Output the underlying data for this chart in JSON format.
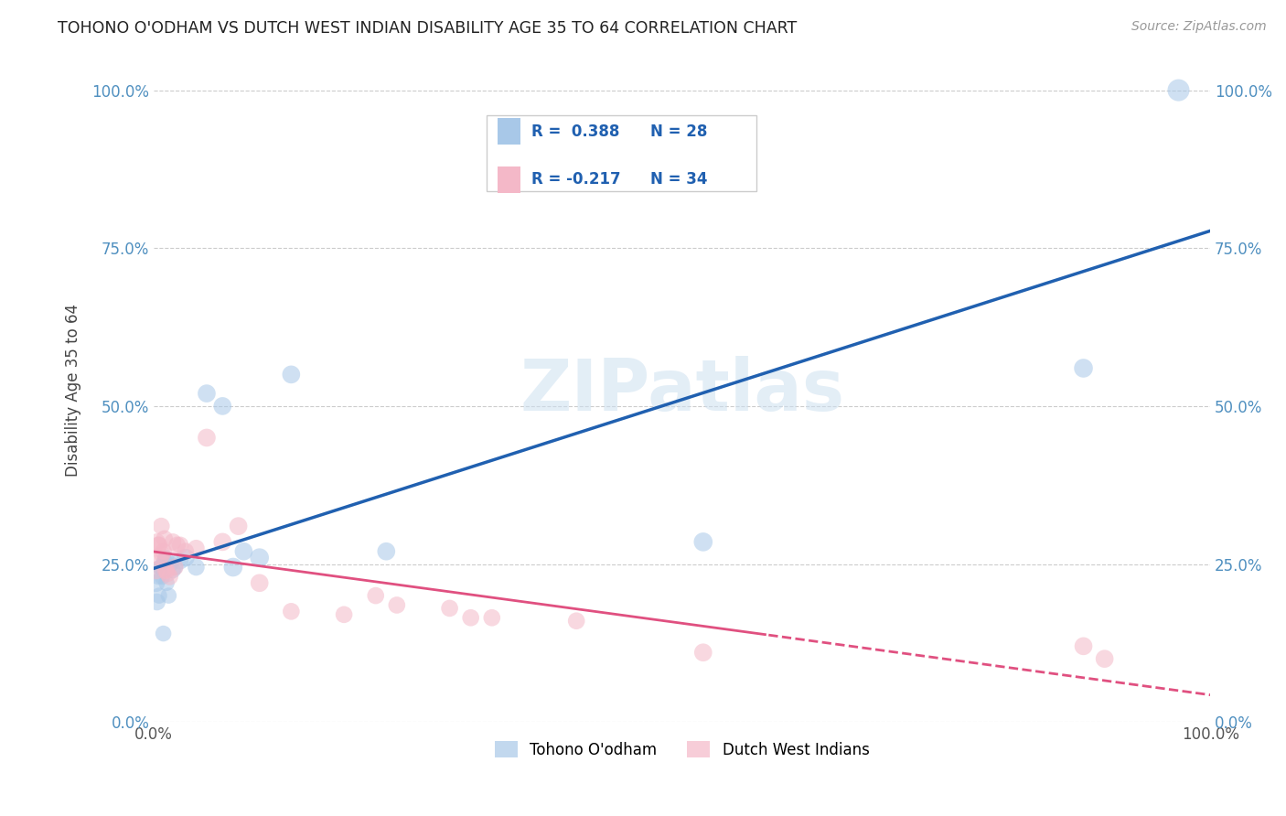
{
  "title": "TOHONO O'ODHAM VS DUTCH WEST INDIAN DISABILITY AGE 35 TO 64 CORRELATION CHART",
  "source": "Source: ZipAtlas.com",
  "ylabel": "Disability Age 35 to 64",
  "xlim": [
    0.0,
    1.0
  ],
  "ylim": [
    0.0,
    1.05
  ],
  "xtick_labels": [
    "0.0%",
    "100.0%"
  ],
  "ytick_labels": [
    "0.0%",
    "25.0%",
    "50.0%",
    "75.0%",
    "100.0%"
  ],
  "ytick_vals": [
    0.0,
    0.25,
    0.5,
    0.75,
    1.0
  ],
  "grid_color": "#cccccc",
  "watermark_text": "ZIPatlas",
  "legend_r1": "R =  0.388",
  "legend_n1": "N = 28",
  "legend_r2": "R = -0.217",
  "legend_n2": "N = 34",
  "blue_color": "#a8c8e8",
  "pink_color": "#f4b8c8",
  "blue_line_color": "#2060b0",
  "pink_line_color": "#e05080",
  "tohono_x": [
    0.002,
    0.003,
    0.004,
    0.005,
    0.006,
    0.007,
    0.008,
    0.009,
    0.01,
    0.011,
    0.012,
    0.014,
    0.016,
    0.018,
    0.02,
    0.025,
    0.03,
    0.04,
    0.05,
    0.065,
    0.075,
    0.085,
    0.1,
    0.13,
    0.22,
    0.52,
    0.88,
    0.97
  ],
  "tohono_y": [
    0.22,
    0.19,
    0.23,
    0.2,
    0.245,
    0.245,
    0.23,
    0.14,
    0.255,
    0.26,
    0.22,
    0.2,
    0.25,
    0.24,
    0.245,
    0.255,
    0.26,
    0.245,
    0.52,
    0.5,
    0.245,
    0.27,
    0.26,
    0.55,
    0.27,
    0.285,
    0.56,
    1.0
  ],
  "tohono_s": [
    200,
    180,
    160,
    160,
    160,
    160,
    160,
    160,
    160,
    160,
    160,
    160,
    160,
    160,
    160,
    180,
    200,
    180,
    200,
    200,
    220,
    200,
    220,
    200,
    200,
    220,
    220,
    300
  ],
  "dutch_x": [
    0.002,
    0.003,
    0.004,
    0.005,
    0.006,
    0.007,
    0.008,
    0.009,
    0.01,
    0.011,
    0.012,
    0.013,
    0.015,
    0.018,
    0.02,
    0.022,
    0.025,
    0.03,
    0.04,
    0.05,
    0.065,
    0.08,
    0.1,
    0.13,
    0.18,
    0.21,
    0.23,
    0.28,
    0.3,
    0.32,
    0.4,
    0.52,
    0.88,
    0.9
  ],
  "dutch_y": [
    0.24,
    0.285,
    0.28,
    0.28,
    0.26,
    0.31,
    0.265,
    0.27,
    0.29,
    0.24,
    0.24,
    0.235,
    0.23,
    0.285,
    0.245,
    0.28,
    0.28,
    0.27,
    0.275,
    0.45,
    0.285,
    0.31,
    0.22,
    0.175,
    0.17,
    0.2,
    0.185,
    0.18,
    0.165,
    0.165,
    0.16,
    0.11,
    0.12,
    0.1
  ],
  "dutch_s": [
    200,
    180,
    180,
    180,
    180,
    180,
    180,
    180,
    180,
    180,
    180,
    180,
    180,
    180,
    180,
    180,
    180,
    180,
    180,
    200,
    200,
    200,
    200,
    180,
    180,
    180,
    180,
    180,
    180,
    180,
    180,
    200,
    200,
    200
  ]
}
